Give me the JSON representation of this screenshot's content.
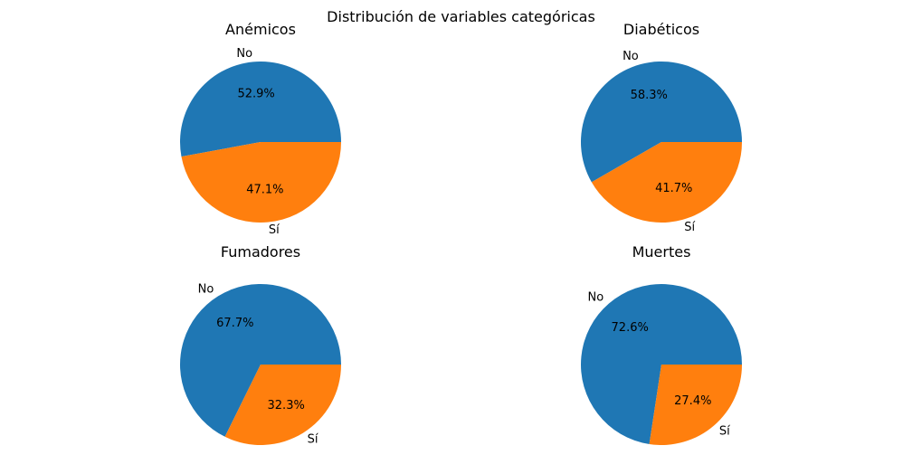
{
  "figure": {
    "suptitle": "Distribución de variables categóricas"
  },
  "chart_data": [
    {
      "type": "pie",
      "title": "Anémicos",
      "labels": [
        "No",
        "Sí"
      ],
      "values": [
        52.9,
        47.1
      ],
      "value_labels": [
        "52.9%",
        "47.1%"
      ],
      "colors": [
        "#1f77b4",
        "#ff7f0e"
      ]
    },
    {
      "type": "pie",
      "title": "Diabéticos",
      "labels": [
        "No",
        "Sí"
      ],
      "values": [
        58.3,
        41.7
      ],
      "value_labels": [
        "58.3%",
        "41.7%"
      ],
      "colors": [
        "#1f77b4",
        "#ff7f0e"
      ]
    },
    {
      "type": "pie",
      "title": "Fumadores",
      "labels": [
        "No",
        "Sí"
      ],
      "values": [
        67.7,
        32.3
      ],
      "value_labels": [
        "67.7%",
        "32.3%"
      ],
      "colors": [
        "#1f77b4",
        "#ff7f0e"
      ]
    },
    {
      "type": "pie",
      "title": "Muertes",
      "labels": [
        "No",
        "Sí"
      ],
      "values": [
        72.6,
        27.4
      ],
      "value_labels": [
        "72.6%",
        "27.4%"
      ],
      "colors": [
        "#1f77b4",
        "#ff7f0e"
      ]
    }
  ]
}
